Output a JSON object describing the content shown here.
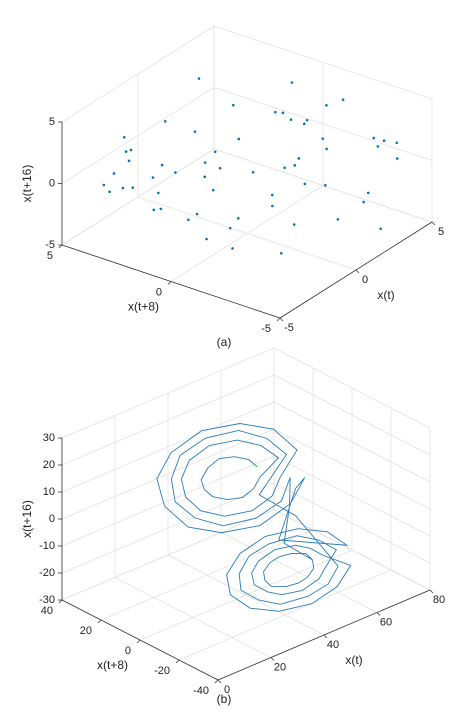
{
  "chart_data": [
    {
      "type": "scatter3d",
      "caption": "(a)",
      "xlabel": "x(t)",
      "ylabel": "x(t+8)",
      "zlabel": "x(t+16)",
      "xlim": [
        -5,
        5
      ],
      "ylim": [
        -5,
        5
      ],
      "zlim": [
        -5,
        5
      ],
      "xticks": [
        -5,
        0,
        5
      ],
      "yticks": [
        -5,
        0,
        5
      ],
      "zticks": [
        -5,
        0,
        5
      ],
      "grid": true,
      "color": "#0072bd",
      "x": [
        -4.2,
        3.1,
        0.5,
        -1.8,
        4.6,
        -3.3,
        2.2,
        -0.7,
        1.9,
        -4.8,
        3.7,
        -2.5,
        0.1,
        4.1,
        -1.1,
        2.8,
        -3.9,
        1.3,
        -0.3,
        4.9,
        -2.1,
        3.4,
        -4.5,
        0.8,
        2.5,
        -3.0,
        1.6,
        -1.5,
        4.3,
        -0.9,
        2.0,
        -4.0,
        3.0,
        -2.8,
        0.4,
        4.7,
        -1.9,
        1.1,
        -3.6,
        2.6,
        -0.5,
        3.8,
        -4.4,
        1.5,
        -2.3,
        4.0,
        0.0,
        -3.2,
        2.9,
        -1.3,
        3.5,
        -4.7,
        0.9,
        -2.0,
        4.4,
        -0.1,
        1.8,
        -3.5,
        2.3,
        -1.6
      ],
      "y": [
        2.7,
        -3.4,
        4.1,
        0.6,
        -1.2,
        3.8,
        -4.6,
        1.9,
        -0.4,
        2.2,
        4.5,
        -2.9,
        -4.1,
        0.8,
        3.3,
        -1.7,
        -3.0,
        4.8,
        -2.4,
        1.4,
        -0.8,
        3.0,
        -4.3,
        2.5,
        -1.9,
        0.2,
        4.4,
        -3.7,
        1.7,
        -2.2,
        3.6,
        -0.1,
        -4.8,
        2.0,
        -3.2,
        0.9,
        4.0,
        -1.4,
        2.9,
        -4.0,
        1.2,
        -2.7,
        3.5,
        -0.6,
        4.7,
        -3.5,
        0.4,
        -1.0,
        2.4,
        -4.5,
        3.9,
        1.0,
        -2.0,
        4.3,
        -3.8,
        0.7,
        -1.5,
        2.8,
        -4.4,
        3.2
      ],
      "z": [
        4.5,
        -2.1,
        1.3,
        -4.4,
        3.0,
        0.2,
        -3.6,
        2.7,
        -0.9,
        4.1,
        -4.8,
        1.8,
        -1.5,
        3.6,
        -2.8,
        0.7,
        4.8,
        -3.3,
        2.2,
        -0.4,
        -4.1,
        1.0,
        3.3,
        -2.5,
        4.6,
        -1.2,
        -3.9,
        2.4,
        0.5,
        -4.6,
        3.9,
        -0.7,
        1.6,
        -2.0,
        4.3,
        -3.1,
        0.9,
        -4.3,
        2.0,
        3.1,
        -1.8,
        -3.8,
        0.3,
        4.0,
        -2.6,
        1.5,
        -4.0,
        3.4,
        -1.0,
        2.6,
        -3.4,
        0.0,
        4.4,
        -2.3,
        1.2,
        -4.9,
        3.7,
        -0.2,
        2.9,
        -1.1
      ]
    },
    {
      "type": "line3d",
      "caption": "(b)",
      "xlabel": "x(t)",
      "ylabel": "x(t+8)",
      "zlabel": "x(t+16)",
      "xlim": [
        0,
        80
      ],
      "ylim": [
        -40,
        40
      ],
      "zlim": [
        -30,
        30
      ],
      "xticks": [
        0,
        20,
        40,
        60,
        80
      ],
      "yticks": [
        -40,
        -20,
        0,
        20,
        40
      ],
      "zticks": [
        -30,
        -20,
        -10,
        0,
        10,
        20,
        30
      ],
      "grid": true,
      "color": "#2b7bba",
      "x": [
        45,
        44,
        40,
        35,
        30,
        26,
        25,
        26,
        30,
        35,
        40,
        44,
        53,
        50,
        44,
        35,
        26,
        20,
        18,
        20,
        26,
        35,
        44,
        50,
        60,
        57,
        48,
        35,
        22,
        13,
        10,
        13,
        22,
        35,
        48,
        57,
        55,
        45,
        70,
        67,
        59,
        48,
        37,
        29,
        26,
        29,
        37,
        48,
        59,
        67,
        61,
        59,
        55,
        48,
        41,
        37,
        35,
        37,
        41,
        48,
        55,
        59,
        66,
        63,
        57,
        48,
        39,
        33,
        30,
        33,
        39,
        48,
        57,
        63,
        55,
        45,
        56,
        53,
        46,
        35,
        24,
        17,
        14,
        17,
        24,
        35,
        46,
        53,
        52,
        47,
        57,
        56,
        52,
        48,
        44,
        40,
        39,
        40,
        44,
        48,
        52,
        56,
        57
      ],
      "y": [
        1,
        4,
        6,
        7,
        6,
        4,
        1,
        -2,
        -4,
        -5,
        -4,
        -2,
        1,
        6,
        10,
        12,
        10,
        6,
        1,
        -4,
        -8,
        -10,
        -8,
        -4,
        1,
        9,
        14,
        16,
        14,
        9,
        1,
        -7,
        -12,
        -14,
        -12,
        -7,
        -5,
        -10,
        -11,
        -5,
        -1,
        1,
        -1,
        -5,
        -11,
        -17,
        -21,
        -23,
        -21,
        -17,
        -11,
        -7,
        -5,
        -4,
        -5,
        -7,
        -11,
        -15,
        -17,
        -18,
        -17,
        -15,
        -11,
        -6,
        -3,
        -1,
        -3,
        -6,
        -11,
        -16,
        -19,
        -21,
        -19,
        -16,
        -5,
        0,
        1,
        7,
        12,
        14,
        12,
        7,
        1,
        -5,
        -10,
        -12,
        -10,
        -5,
        -6,
        -10,
        -11,
        -9,
        -7,
        -6,
        -7,
        -9,
        -11,
        -13,
        -15,
        -16,
        -15,
        -13,
        -11
      ],
      "z": [
        15,
        17,
        19,
        20,
        19,
        17,
        15,
        13,
        11,
        10,
        11,
        13,
        15,
        19,
        22,
        23,
        22,
        19,
        15,
        11,
        8,
        7,
        8,
        11,
        15,
        21,
        25,
        27,
        25,
        21,
        15,
        9,
        5,
        3,
        5,
        9,
        5,
        -8,
        -20,
        -16,
        -13,
        -12,
        -13,
        -16,
        -20,
        -24,
        -27,
        -28,
        -27,
        -24,
        -20,
        -18,
        -16,
        -15,
        -16,
        -18,
        -20,
        -22,
        -24,
        -25,
        -24,
        -22,
        -20,
        -17,
        -14,
        -14,
        -14,
        -17,
        -20,
        -23,
        -26,
        -26,
        -26,
        -23,
        -5,
        5,
        15,
        20,
        24,
        25,
        24,
        20,
        15,
        10,
        6,
        5,
        6,
        10,
        0,
        -10,
        -20,
        -18,
        -17,
        -17,
        -17,
        -18,
        -20,
        -22,
        -23,
        -23,
        -23,
        -22,
        -20
      ]
    }
  ]
}
